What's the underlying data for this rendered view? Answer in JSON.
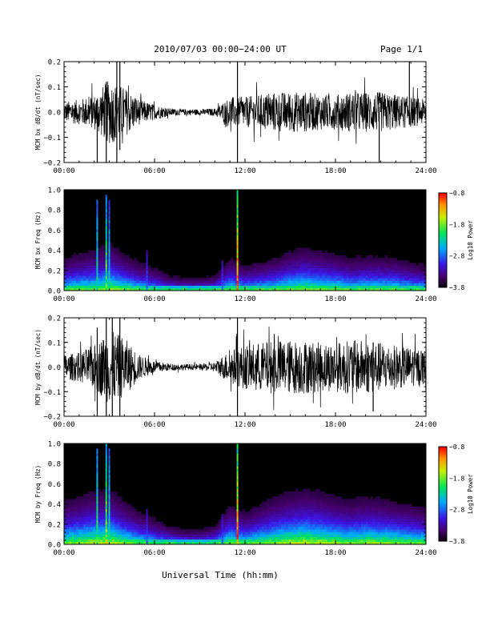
{
  "header": {
    "date_range": "2010/07/03  00:00−24:00 UT",
    "page": "Page 1/1"
  },
  "xlabel": "Universal Time (hh:mm)",
  "chart_data": [
    {
      "type": "line",
      "ylabel": "MCM bx dB/dt (nT/sec)",
      "xlim": [
        0,
        24
      ],
      "ylim": [
        -0.2,
        0.2
      ],
      "x_ticks": [
        "00:00",
        "06:00",
        "12:00",
        "18:00",
        "24:00"
      ],
      "y_ticks": [
        "0.2",
        "0.1",
        "0.0",
        "−0.1",
        "−0.2"
      ],
      "envelope": {
        "hours": [
          0,
          1,
          2,
          3,
          4,
          5,
          6,
          7,
          8,
          9,
          10,
          11,
          12,
          13,
          14,
          15,
          16,
          17,
          18,
          19,
          20,
          21,
          22,
          23,
          24
        ],
        "amplitude": [
          0.04,
          0.05,
          0.07,
          0.13,
          0.1,
          0.05,
          0.03,
          0.015,
          0.012,
          0.012,
          0.015,
          0.06,
          0.06,
          0.07,
          0.08,
          0.08,
          0.08,
          0.07,
          0.07,
          0.08,
          0.08,
          0.08,
          0.07,
          0.06,
          0.05
        ]
      },
      "spikes": [
        {
          "t": 2.2,
          "lo": -0.2,
          "hi": 0.05
        },
        {
          "t": 2.8,
          "lo": -0.2,
          "hi": 0.12
        },
        {
          "t": 3.5,
          "lo": -0.2,
          "hi": 0.2
        },
        {
          "t": 3.7,
          "lo": -0.15,
          "hi": 0.2
        },
        {
          "t": 11.5,
          "lo": -0.2,
          "hi": 0.2
        },
        {
          "t": 20.9,
          "lo": -0.2,
          "hi": 0.02
        },
        {
          "t": 22.9,
          "lo": -0.05,
          "hi": 0.2
        }
      ]
    },
    {
      "type": "heatmap",
      "ylabel": "MCM bx Freq (Hz)",
      "xlim": [
        0,
        24
      ],
      "ylim": [
        0,
        1.0
      ],
      "x_ticks": [
        "00:00",
        "06:00",
        "12:00",
        "18:00",
        "24:00"
      ],
      "y_ticks": [
        "1.0",
        "0.8",
        "0.6",
        "0.4",
        "0.2",
        "0.0"
      ],
      "colorbar": {
        "label": "Log10 Power",
        "range": [
          -3.8,
          -0.8
        ],
        "ticks": [
          "−0.8",
          "−1.8",
          "−2.8",
          "−3.8"
        ]
      },
      "activity": [
        0.25,
        0.28,
        0.3,
        0.35,
        0.28,
        0.22,
        0.18,
        0.12,
        0.1,
        0.1,
        0.12,
        0.25,
        0.2,
        0.22,
        0.25,
        0.3,
        0.32,
        0.3,
        0.28,
        0.25,
        0.26,
        0.26,
        0.25,
        0.22,
        0.2
      ],
      "streaks": [
        {
          "t": 2.2,
          "top": 0.9,
          "intensity": 0.6
        },
        {
          "t": 2.8,
          "top": 0.95,
          "intensity": 0.7
        },
        {
          "t": 3.0,
          "top": 0.9,
          "intensity": 0.55
        },
        {
          "t": 5.5,
          "top": 0.4,
          "intensity": 0.35
        },
        {
          "t": 10.5,
          "top": 0.3,
          "intensity": 0.35
        },
        {
          "t": 11.5,
          "top": 1.0,
          "intensity": 1.0
        }
      ]
    },
    {
      "type": "line",
      "ylabel": "MCM by dB/dt (nT/sec)",
      "xlim": [
        0,
        24
      ],
      "ylim": [
        -0.2,
        0.2
      ],
      "x_ticks": [
        "00:00",
        "06:00",
        "12:00",
        "18:00",
        "24:00"
      ],
      "y_ticks": [
        "0.2",
        "0.1",
        "0.0",
        "−0.1",
        "−0.2"
      ],
      "envelope": {
        "hours": [
          0,
          1,
          2,
          3,
          4,
          5,
          6,
          7,
          8,
          9,
          10,
          11,
          12,
          13,
          14,
          15,
          16,
          17,
          18,
          19,
          20,
          21,
          22,
          23,
          24
        ],
        "amplitude": [
          0.05,
          0.06,
          0.09,
          0.15,
          0.12,
          0.05,
          0.025,
          0.015,
          0.012,
          0.012,
          0.02,
          0.07,
          0.09,
          0.1,
          0.11,
          0.11,
          0.11,
          0.1,
          0.1,
          0.11,
          0.11,
          0.1,
          0.09,
          0.08,
          0.07
        ]
      },
      "spikes": [
        {
          "t": 2.2,
          "lo": -0.2,
          "hi": 0.16
        },
        {
          "t": 2.8,
          "lo": -0.2,
          "hi": 0.2
        },
        {
          "t": 3.2,
          "lo": -0.2,
          "hi": 0.2
        },
        {
          "t": 3.7,
          "lo": -0.2,
          "hi": 0.2
        },
        {
          "t": 11.5,
          "lo": -0.2,
          "hi": 0.2
        },
        {
          "t": 20.5,
          "lo": -0.18,
          "hi": 0.1
        }
      ]
    },
    {
      "type": "heatmap",
      "ylabel": "MCM by Freq (Hz)",
      "xlim": [
        0,
        24
      ],
      "ylim": [
        0,
        1.0
      ],
      "x_ticks": [
        "00:00",
        "06:00",
        "12:00",
        "18:00",
        "24:00"
      ],
      "y_ticks": [
        "1.0",
        "0.8",
        "0.6",
        "0.4",
        "0.2",
        "0.0"
      ],
      "colorbar": {
        "label": "Log10 Power",
        "range": [
          -3.8,
          -0.8
        ],
        "ticks": [
          "−0.8",
          "−1.8",
          "−2.8",
          "−3.8"
        ]
      },
      "activity": [
        0.32,
        0.35,
        0.38,
        0.4,
        0.32,
        0.25,
        0.2,
        0.15,
        0.12,
        0.12,
        0.15,
        0.3,
        0.25,
        0.3,
        0.35,
        0.38,
        0.4,
        0.38,
        0.35,
        0.33,
        0.35,
        0.34,
        0.32,
        0.3,
        0.28
      ],
      "streaks": [
        {
          "t": 2.2,
          "top": 0.95,
          "intensity": 0.65
        },
        {
          "t": 2.8,
          "top": 1.0,
          "intensity": 0.75
        },
        {
          "t": 3.0,
          "top": 0.95,
          "intensity": 0.6
        },
        {
          "t": 5.5,
          "top": 0.35,
          "intensity": 0.35
        },
        {
          "t": 10.5,
          "top": 0.3,
          "intensity": 0.35
        },
        {
          "t": 11.5,
          "top": 1.0,
          "intensity": 1.0
        }
      ]
    }
  ]
}
